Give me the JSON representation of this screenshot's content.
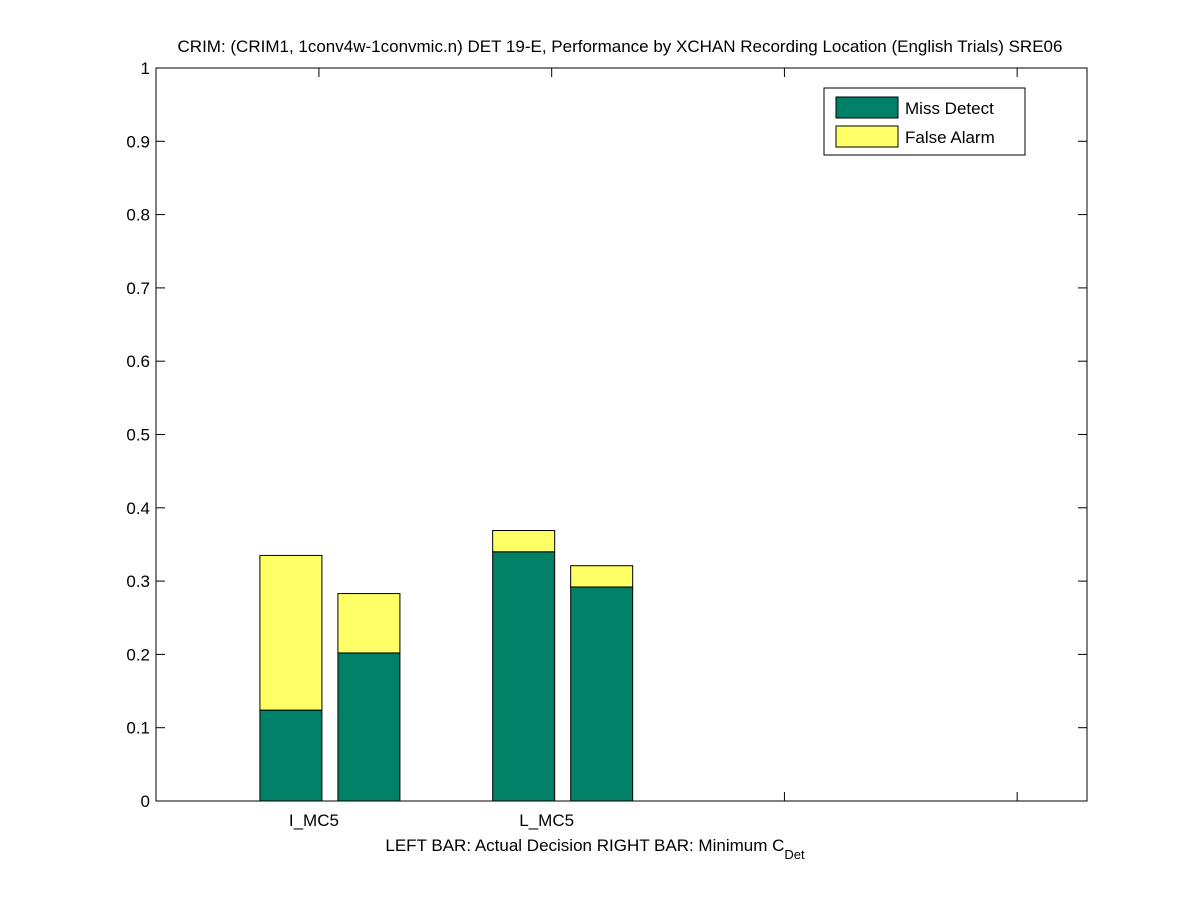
{
  "chart_data": {
    "type": "bar",
    "stacked": true,
    "title": "CRIM: (CRIM1, 1conv4w-1convmic.n) DET 19-E,  Performance by XCHAN Recording Location (English Trials) SRE06",
    "xlabel_main": "LEFT BAR: Actual Decision     RIGHT BAR: Minimum C",
    "xlabel_sub": "Det",
    "ylabel": "",
    "ylim": [
      0,
      1
    ],
    "yticks": [
      "0",
      "0.1",
      "0.2",
      "0.3",
      "0.4",
      "0.5",
      "0.6",
      "0.7",
      "0.8",
      "0.9",
      "1"
    ],
    "groups": [
      "I_MC5",
      "L_MC5"
    ],
    "bar_roles": [
      "Actual Decision",
      "Minimum C_Det"
    ],
    "series": [
      {
        "name": "Miss Detect",
        "color": "#008066",
        "values": [
          [
            0.124,
            0.202
          ],
          [
            0.34,
            0.292
          ]
        ]
      },
      {
        "name": "False Alarm",
        "color": "#ffff66",
        "values": [
          [
            0.211,
            0.081
          ],
          [
            0.029,
            0.029
          ]
        ]
      }
    ],
    "legend_position": "top-right",
    "grid": false
  }
}
